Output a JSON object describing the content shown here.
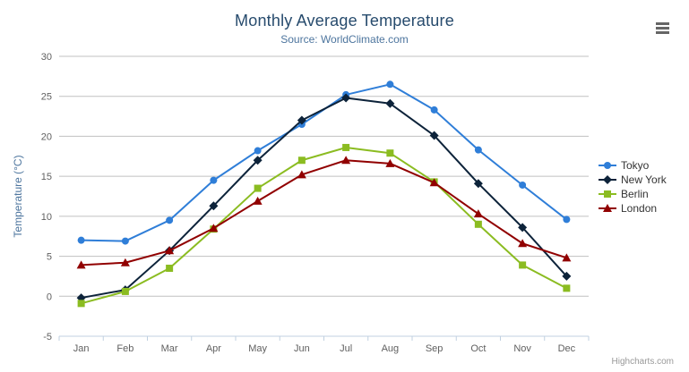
{
  "chart_data": {
    "type": "line",
    "title": "Monthly Average Temperature",
    "subtitle": "Source: WorldClimate.com",
    "categories": [
      "Jan",
      "Feb",
      "Mar",
      "Apr",
      "May",
      "Jun",
      "Jul",
      "Aug",
      "Sep",
      "Oct",
      "Nov",
      "Dec"
    ],
    "series": [
      {
        "name": "Tokyo",
        "color": "#2f7ed8",
        "marker": "circle",
        "values": [
          7.0,
          6.9,
          9.5,
          14.5,
          18.2,
          21.5,
          25.2,
          26.5,
          23.3,
          18.3,
          13.9,
          9.6
        ]
      },
      {
        "name": "New York",
        "color": "#0d233a",
        "marker": "diamond",
        "values": [
          -0.2,
          0.8,
          5.7,
          11.3,
          17.0,
          22.0,
          24.8,
          24.1,
          20.1,
          14.1,
          8.6,
          2.5
        ]
      },
      {
        "name": "Berlin",
        "color": "#8bbc21",
        "marker": "square",
        "values": [
          -0.9,
          0.6,
          3.5,
          8.4,
          13.5,
          17.0,
          18.6,
          17.9,
          14.3,
          9.0,
          3.9,
          1.0
        ]
      },
      {
        "name": "London",
        "color": "#910000",
        "marker": "triangle",
        "values": [
          3.9,
          4.2,
          5.7,
          8.5,
          11.9,
          15.2,
          17.0,
          16.6,
          14.2,
          10.3,
          6.6,
          4.8
        ]
      }
    ],
    "xlabel": "",
    "ylabel": "Temperature (°C)",
    "ylim": [
      -5,
      30
    ],
    "yticks": [
      -5,
      0,
      5,
      10,
      15,
      20,
      25,
      30
    ],
    "grid": "horizontal",
    "legend_position": "right"
  },
  "colors": {
    "title": "#274b6d",
    "subtitle": "#4d759e",
    "axis_title": "#4d759e",
    "axis_label": "#606060",
    "grid_line": "#c0c0c0",
    "axis_line": "#c0d0e0",
    "legend_text": "#333333",
    "credit": "#999999",
    "menu_icon": "#666666"
  },
  "export_menu": {
    "icon": "hamburger-menu-icon"
  },
  "credit": "Highcharts.com"
}
